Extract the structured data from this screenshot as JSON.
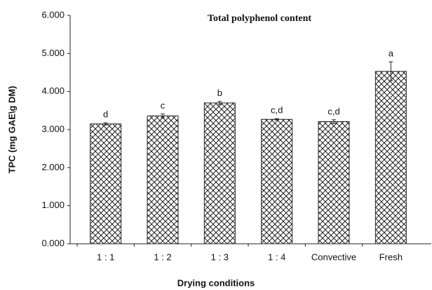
{
  "chart_data": {
    "type": "bar",
    "title": "Total polyphenol content",
    "x_label": "Drying conditions",
    "y_label": "TPC (mg GAE\\g DM)",
    "categories": [
      "1 : 1",
      "1 : 2",
      "1 : 3",
      "1 : 4",
      "Convective",
      "Fresh"
    ],
    "values": [
      3.15,
      3.36,
      3.7,
      3.27,
      3.21,
      4.53
    ],
    "errors": [
      0.03,
      0.05,
      0.04,
      0.02,
      0.05,
      0.25
    ],
    "annotations": [
      "d",
      "c",
      "b",
      "c,d",
      "c,d",
      "a"
    ],
    "color": "#222222",
    "ylim": [
      0,
      6
    ],
    "yticks": [
      {
        "value": 0,
        "label": "0.000"
      },
      {
        "value": 1,
        "label": "1.000"
      },
      {
        "value": 2,
        "label": "2.000"
      },
      {
        "value": 3,
        "label": "3.000"
      },
      {
        "value": 4,
        "label": "4.000"
      },
      {
        "value": 5,
        "label": "5.000"
      },
      {
        "value": 6,
        "label": "6.000"
      }
    ],
    "grid": false
  }
}
